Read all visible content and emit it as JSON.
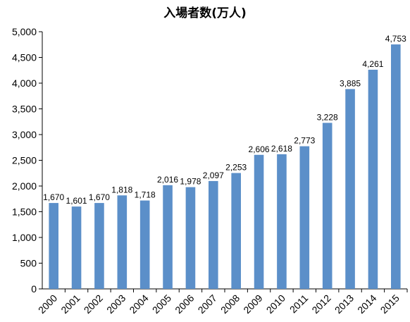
{
  "chart_data": {
    "type": "bar",
    "title": "入場者数(万人)",
    "categories": [
      "2000",
      "2001",
      "2002",
      "2003",
      "2004",
      "2005",
      "2006",
      "2007",
      "2008",
      "2009",
      "2010",
      "2011",
      "2012",
      "2013",
      "2014",
      "2015"
    ],
    "values": [
      1670,
      1601,
      1670,
      1818,
      1718,
      2016,
      1978,
      2097,
      2253,
      2606,
      2618,
      2773,
      3228,
      3885,
      4261,
      4753
    ],
    "data_labels": [
      "1,670",
      "1,601",
      "1,670",
      "1,818",
      "1,718",
      "2,016",
      "1,978",
      "2,097",
      "2,253",
      "2,606",
      "2,618",
      "2,773",
      "3,228",
      "3,885",
      "4,261",
      "4,753"
    ],
    "ylim": [
      0,
      5000
    ],
    "yticks": [
      0,
      500,
      1000,
      1500,
      2000,
      2500,
      3000,
      3500,
      4000,
      4500,
      5000
    ],
    "ytick_labels": [
      "0",
      "500",
      "1,000",
      "1,500",
      "2,000",
      "2,500",
      "3,000",
      "3,500",
      "4,000",
      "4,500",
      "5,000"
    ],
    "xlabel": "",
    "ylabel": "",
    "grid": false,
    "bar_color": "#5b8fc9"
  }
}
